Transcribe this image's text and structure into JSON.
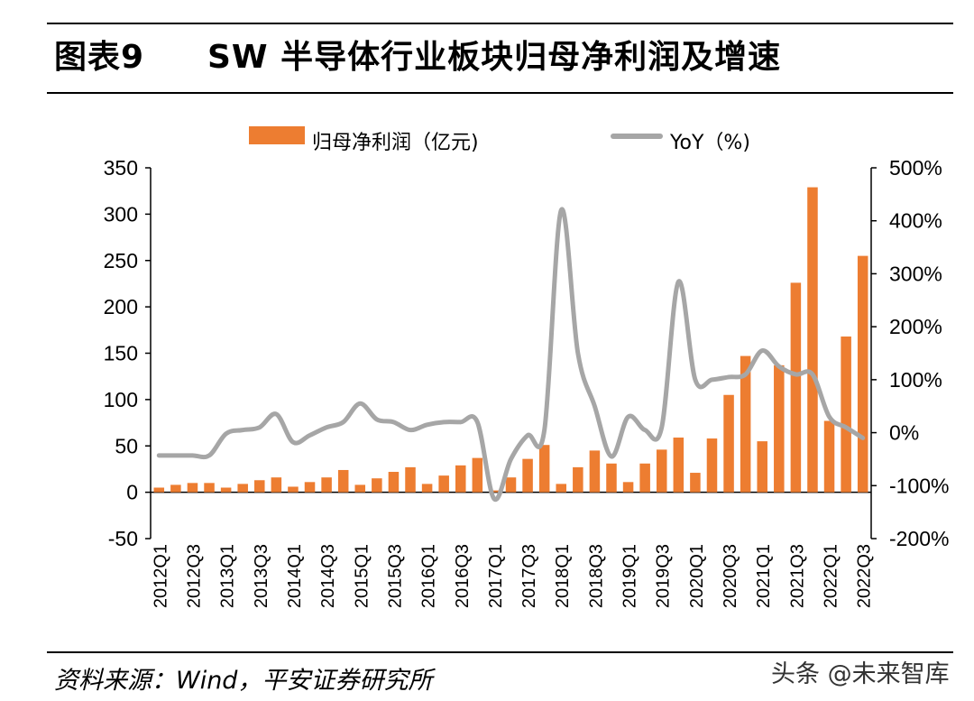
{
  "header": {
    "figure_label": "图表9",
    "figure_title": "SW 半导体行业板块归母净利润及增速"
  },
  "footer": {
    "source": "资料来源：Wind，平安证券研究所",
    "watermark": "头条 @未来智库"
  },
  "colors": {
    "bar": "#ed7d31",
    "line": "#a6a6a6"
  },
  "chart_data": {
    "type": "bar",
    "title": "",
    "categories": [
      "2012Q1",
      "2012Q2",
      "2012Q3",
      "2012Q4",
      "2013Q1",
      "2013Q2",
      "2013Q3",
      "2013Q4",
      "2014Q1",
      "2014Q2",
      "2014Q3",
      "2014Q4",
      "2015Q1",
      "2015Q2",
      "2015Q3",
      "2015Q4",
      "2016Q1",
      "2016Q2",
      "2016Q3",
      "2016Q4",
      "2017Q1",
      "2017Q2",
      "2017Q3",
      "2017Q4",
      "2018Q1",
      "2018Q2",
      "2018Q3",
      "2018Q4",
      "2019Q1",
      "2019Q2",
      "2019Q3",
      "2019Q4",
      "2020Q1",
      "2020Q2",
      "2020Q3",
      "2020Q4",
      "2021Q1",
      "2021Q2",
      "2021Q3",
      "2021Q4",
      "2022Q1",
      "2022Q2",
      "2022Q3"
    ],
    "tick_labels": [
      "2012Q1",
      "2012Q3",
      "2013Q1",
      "2013Q3",
      "2014Q1",
      "2014Q3",
      "2015Q1",
      "2015Q3",
      "2016Q1",
      "2016Q3",
      "2017Q1",
      "2017Q3",
      "2018Q1",
      "2018Q3",
      "2019Q1",
      "2019Q3",
      "2020Q1",
      "2020Q3",
      "2021Q1",
      "2021Q3",
      "2022Q1",
      "2022Q3"
    ],
    "series": [
      {
        "name": "归母净利润（亿元)",
        "type": "bar",
        "axis": "left",
        "values": [
          5,
          8,
          10,
          10,
          5,
          9,
          13,
          16,
          6,
          11,
          16,
          24,
          8,
          15,
          22,
          27,
          9,
          18,
          29,
          37,
          2,
          16,
          36,
          51,
          9,
          27,
          45,
          31,
          11,
          31,
          46,
          59,
          21,
          58,
          105,
          147,
          55,
          137,
          226,
          329,
          77,
          168,
          255
        ]
      },
      {
        "name": "YoY（%)",
        "type": "line",
        "axis": "right",
        "values": [
          -43,
          -43,
          -43,
          -43,
          -2,
          5,
          10,
          35,
          -18,
          -5,
          10,
          20,
          55,
          25,
          20,
          5,
          15,
          20,
          20,
          20,
          -125,
          -50,
          -5,
          5,
          420,
          150,
          50,
          -45,
          30,
          5,
          10,
          285,
          100,
          100,
          105,
          110,
          155,
          125,
          110,
          110,
          30,
          10,
          -10
        ]
      }
    ],
    "y_left": {
      "min": -50,
      "max": 350,
      "ticks": [
        -50,
        0,
        50,
        100,
        150,
        200,
        250,
        300,
        350
      ]
    },
    "y_right": {
      "min": -200,
      "max": 500,
      "ticks": [
        "-200%",
        "-100%",
        "0%",
        "100%",
        "200%",
        "300%",
        "400%",
        "500%"
      ]
    },
    "legend": {
      "placement": "top"
    },
    "grid": false
  }
}
